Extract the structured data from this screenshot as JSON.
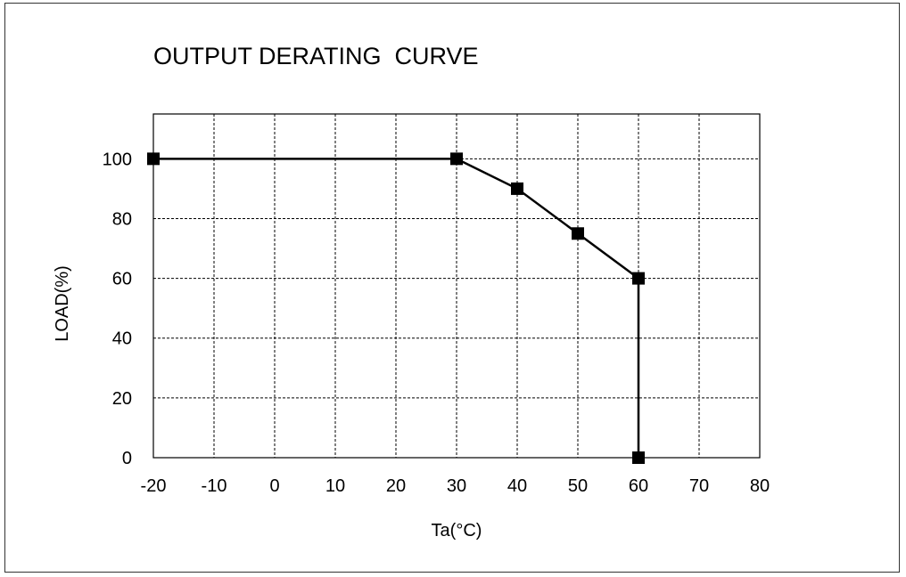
{
  "chart_data": {
    "type": "line",
    "title": "OUTPUT DERATING  CURVE",
    "xlabel": "Ta(°C)",
    "ylabel": "LOAD(%)",
    "xlim": [
      -20,
      80
    ],
    "ylim": [
      0,
      115
    ],
    "xticks": [
      -20,
      -10,
      0,
      10,
      20,
      30,
      40,
      50,
      60,
      70,
      80
    ],
    "yticks": [
      0,
      20,
      40,
      60,
      80,
      100
    ],
    "grid": true,
    "grid_style": "dashed",
    "series": [
      {
        "x": [
          -20,
          30,
          40,
          50,
          60,
          60
        ],
        "y": [
          100,
          100,
          90,
          75,
          60,
          0
        ],
        "marker": "square",
        "color": "#000000"
      }
    ]
  }
}
